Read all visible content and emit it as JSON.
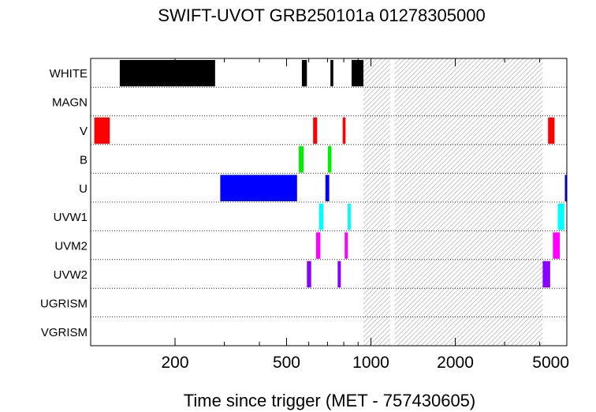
{
  "chart_data": {
    "type": "timeline",
    "title": "SWIFT-UVOT GRB250101a 01278305000",
    "xlabel": "Time since trigger (MET - 757430605)",
    "xscale": "log",
    "xlim": [
      100,
      5000
    ],
    "xticks": [
      {
        "value": 200,
        "label": "200"
      },
      {
        "value": 500,
        "label": "500"
      },
      {
        "value": 1000,
        "label": "1000"
      },
      {
        "value": 2000,
        "label": "2000"
      },
      {
        "value": 5000,
        "label": "5000"
      }
    ],
    "rows": [
      "WHITE",
      "MAGN",
      "V",
      "B",
      "U",
      "UVW1",
      "UVM2",
      "UVW2",
      "UGRISM",
      "VGRISM"
    ],
    "colors": {
      "WHITE": "#000000",
      "V": "#ff0000",
      "B": "#00ee00",
      "U": "#0000ff",
      "UVW1": "#00ffff",
      "UVM2": "#ff00ff",
      "UVW2": "#8800ff",
      "hatch": "#bbbbbb"
    },
    "exposures": [
      {
        "filter": "WHITE",
        "start": 127,
        "end": 278
      },
      {
        "filter": "WHITE",
        "start": 567,
        "end": 591
      },
      {
        "filter": "WHITE",
        "start": 717,
        "end": 734
      },
      {
        "filter": "WHITE",
        "start": 853,
        "end": 940
      },
      {
        "filter": "V",
        "start": 103,
        "end": 117
      },
      {
        "filter": "V",
        "start": 622,
        "end": 643
      },
      {
        "filter": "V",
        "start": 793,
        "end": 812
      },
      {
        "filter": "V",
        "start": 4285,
        "end": 4520
      },
      {
        "filter": "B",
        "start": 553,
        "end": 575
      },
      {
        "filter": "B",
        "start": 702,
        "end": 723
      },
      {
        "filter": "U",
        "start": 290,
        "end": 545
      },
      {
        "filter": "U",
        "start": 688,
        "end": 710
      },
      {
        "filter": "U",
        "start": 4920,
        "end": 5000
      },
      {
        "filter": "UVW1",
        "start": 653,
        "end": 677
      },
      {
        "filter": "UVW1",
        "start": 826,
        "end": 848
      },
      {
        "filter": "UVW1",
        "start": 4640,
        "end": 4900
      },
      {
        "filter": "UVM2",
        "start": 637,
        "end": 660
      },
      {
        "filter": "UVM2",
        "start": 806,
        "end": 827
      },
      {
        "filter": "UVM2",
        "start": 4460,
        "end": 4720
      },
      {
        "filter": "UVW2",
        "start": 591,
        "end": 612
      },
      {
        "filter": "UVW2",
        "start": 761,
        "end": 781
      },
      {
        "filter": "UVW2",
        "start": 4100,
        "end": 4360
      }
    ],
    "shaded_intervals": [
      {
        "start": 940,
        "end": 1170
      },
      {
        "start": 1215,
        "end": 4100
      }
    ]
  }
}
